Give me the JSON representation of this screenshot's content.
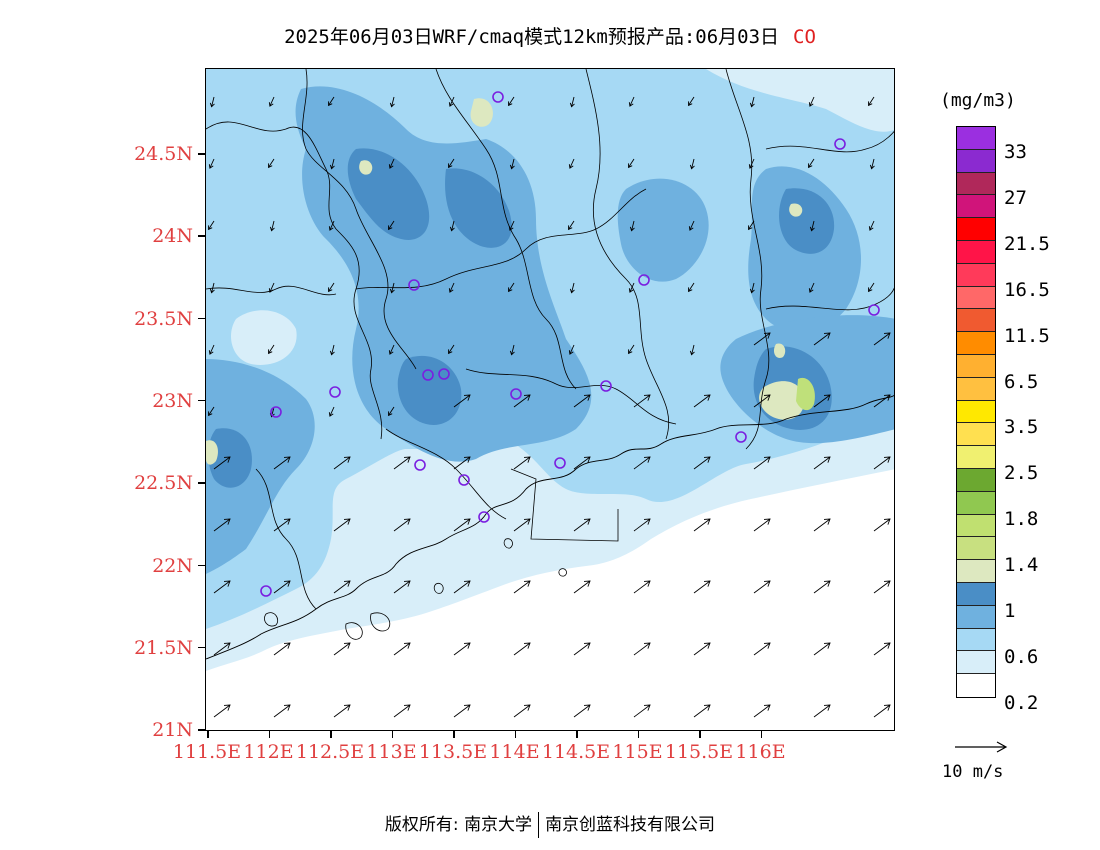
{
  "title": {
    "text": "2025年06月03日WRF/cmaq模式12km预报产品:06月03日",
    "species": "CO"
  },
  "map": {
    "lat_labels": [
      "24.5N",
      "24N",
      "23.5N",
      "23N",
      "22.5N",
      "22N",
      "21.5N",
      "21N"
    ],
    "lon_labels": [
      "111.5E",
      "112E",
      "112.5E",
      "113E",
      "113.5E",
      "114E",
      "114.5E",
      "115E",
      "115.5E",
      "116E"
    ],
    "colors": {
      "lvl_0_2": "#d8eef9",
      "lvl_0_6": "#a6d9f4",
      "lvl_0_8": "#6fb1df",
      "lvl_1": "#4a8ec6",
      "lvl_1_2": "#dde8c0",
      "lvl_1_4": "#bfe07a"
    },
    "features": [
      "county-borders",
      "coastline",
      "wind-vectors",
      "monitoring-stations"
    ]
  },
  "colorbar": {
    "unit": "(mg/m3)",
    "colors": [
      "#9b2fe0",
      "#8b2ad0",
      "#b0285a",
      "#d0147a",
      "#ff0000",
      "#ff1448",
      "#ff3a5a",
      "#ff6868",
      "#f05a30",
      "#ff8c00",
      "#ffb030",
      "#ffc040",
      "#ffe800",
      "#ffe050",
      "#f0f070",
      "#6ca830",
      "#90c850",
      "#c0e070",
      "#c8e080",
      "#dde8c0",
      "#4a8ec6",
      "#6fb1df",
      "#a6d9f4",
      "#d8eef9",
      "#ffffff"
    ],
    "labels": [
      "33",
      "27",
      "21.5",
      "16.5",
      "11.5",
      "6.5",
      "3.5",
      "2.5",
      "1.8",
      "1.4",
      "1",
      "0.6",
      "0.2"
    ]
  },
  "reference_vector": {
    "label": "10 m/s"
  },
  "footer": {
    "copyright_label": "版权所有:",
    "org1": "南京大学",
    "org2": "南京创蓝科技有限公司"
  }
}
